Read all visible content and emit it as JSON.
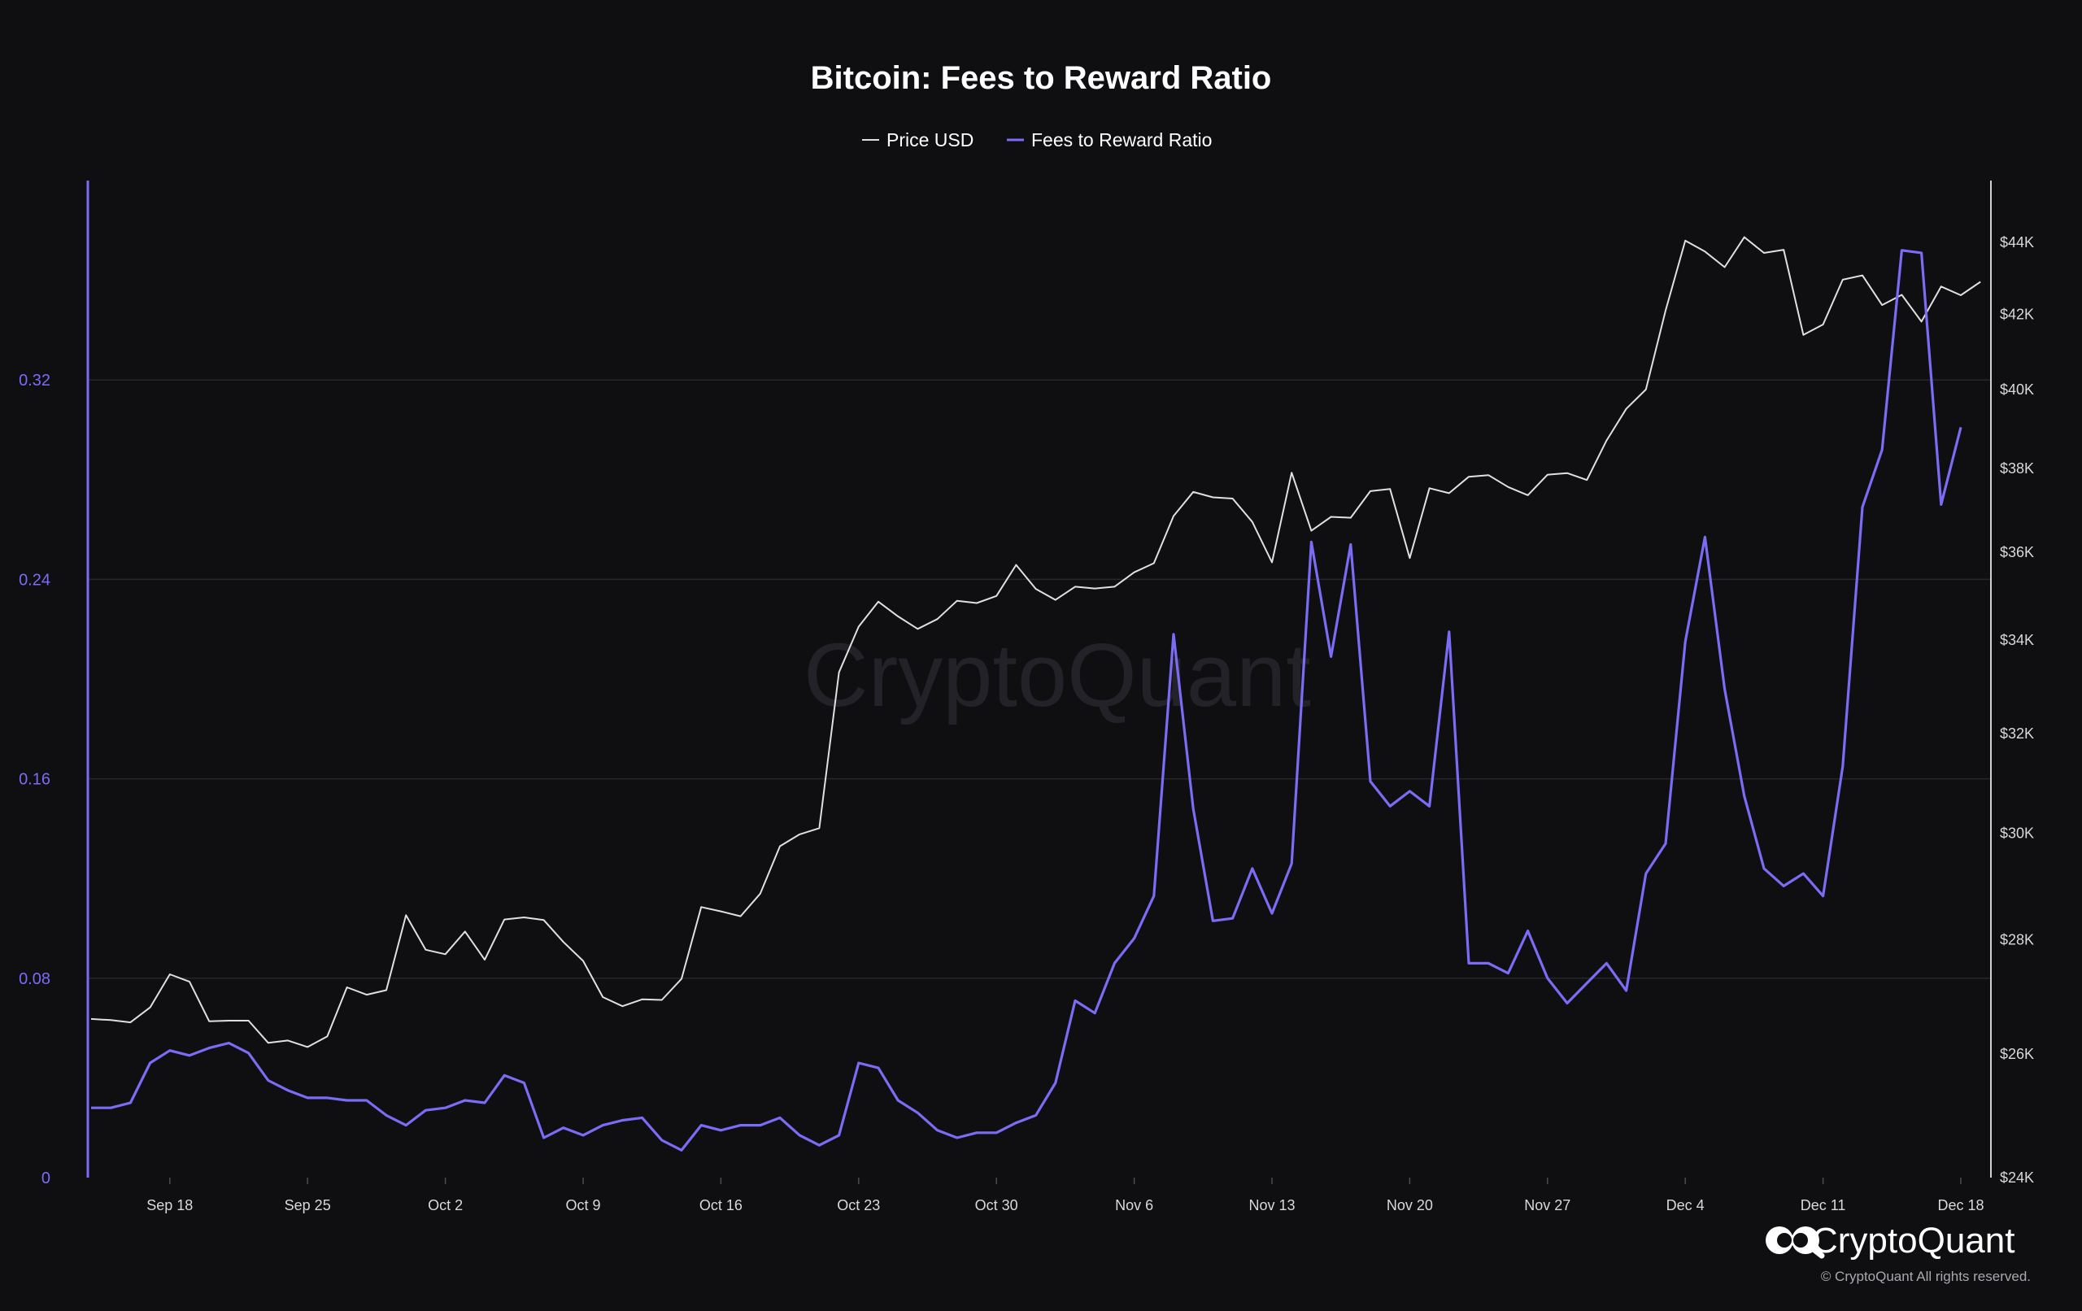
{
  "chart_data": {
    "type": "line",
    "title": "Bitcoin: Fees to Reward Ratio",
    "start_date": "2023-09-14",
    "x_tick_labels": [
      "Sep 18",
      "Sep 25",
      "Oct 2",
      "Oct 9",
      "Oct 16",
      "Oct 23",
      "Oct 30",
      "Nov 6",
      "Nov 13",
      "Nov 20",
      "Nov 27",
      "Dec 4",
      "Dec 11",
      "Dec 18"
    ],
    "y_left": {
      "ticks": [
        0,
        0.08,
        0.16,
        0.24,
        0.32
      ],
      "tick_labels": [
        "0",
        "0.08",
        "0.16",
        "0.24",
        "0.32"
      ],
      "ylim": [
        0,
        0.4
      ],
      "color": "#7b6cf6"
    },
    "y_right": {
      "ticks": [
        24000,
        26000,
        28000,
        30000,
        32000,
        34000,
        36000,
        38000,
        40000,
        42000,
        44000
      ],
      "tick_labels": [
        "$24K",
        "$26K",
        "$28K",
        "$30K",
        "$32K",
        "$34K",
        "$36K",
        "$38K",
        "$40K",
        "$42K",
        "$44K"
      ],
      "scale": "log",
      "ylim": [
        24000,
        45800
      ],
      "color": "#ffffff"
    },
    "grid": true,
    "legend_position": "top-center",
    "series": [
      {
        "name": "Price USD",
        "axis": "right",
        "color": "#e0e0e0",
        "values": [
          26600,
          26580,
          26540,
          26800,
          27380,
          27250,
          26560,
          26570,
          26570,
          26190,
          26230,
          26120,
          26300,
          27150,
          27020,
          27100,
          28450,
          27820,
          27740,
          28150,
          27640,
          28370,
          28410,
          28360,
          27960,
          27620,
          26980,
          26820,
          26940,
          26930,
          27300,
          28600,
          28520,
          28430,
          28850,
          29750,
          29980,
          30100,
          33300,
          34300,
          34860,
          34530,
          34250,
          34470,
          34880,
          34830,
          34990,
          35700,
          35150,
          34900,
          35200,
          35160,
          35200,
          35530,
          35740,
          36850,
          37430,
          37300,
          37270,
          36710,
          35760,
          37900,
          36500,
          36830,
          36810,
          37450,
          37500,
          35860,
          37520,
          37400,
          37800,
          37840,
          37550,
          37350,
          37850,
          37890,
          37720,
          38700,
          39500,
          40000,
          42100,
          44050,
          43740,
          43300,
          44150,
          43700,
          43790,
          41440,
          41720,
          42950,
          43070,
          42250,
          42530,
          41800,
          42760,
          42520,
          42890
        ]
      },
      {
        "name": "Fees to Reward Ratio",
        "axis": "left",
        "color": "#7b6cf6",
        "values": [
          0.028,
          0.028,
          0.03,
          0.046,
          0.051,
          0.049,
          0.052,
          0.054,
          0.05,
          0.039,
          0.035,
          0.032,
          0.032,
          0.031,
          0.031,
          0.025,
          0.021,
          0.027,
          0.028,
          0.031,
          0.03,
          0.041,
          0.038,
          0.016,
          0.02,
          0.017,
          0.021,
          0.023,
          0.024,
          0.015,
          0.011,
          0.021,
          0.019,
          0.021,
          0.021,
          0.024,
          0.017,
          0.013,
          0.017,
          0.046,
          0.044,
          0.031,
          0.026,
          0.019,
          0.016,
          0.018,
          0.018,
          0.022,
          0.025,
          0.038,
          0.071,
          0.066,
          0.086,
          0.096,
          0.113,
          0.218,
          0.148,
          0.103,
          0.104,
          0.124,
          0.106,
          0.126,
          0.255,
          0.209,
          0.254,
          0.159,
          0.149,
          0.155,
          0.149,
          0.219,
          0.086,
          0.086,
          0.082,
          0.099,
          0.08,
          0.07,
          0.078,
          0.086,
          0.075,
          0.122,
          0.134,
          0.215,
          0.257,
          0.196,
          0.153,
          0.124,
          0.117,
          0.122,
          0.113,
          0.165,
          0.269,
          0.292,
          0.372,
          0.371,
          0.27,
          0.301
        ]
      }
    ]
  },
  "watermark": "CryptoQuant",
  "brand": {
    "name": "CryptoQuant",
    "copyright": "© CryptoQuant All rights reserved."
  }
}
